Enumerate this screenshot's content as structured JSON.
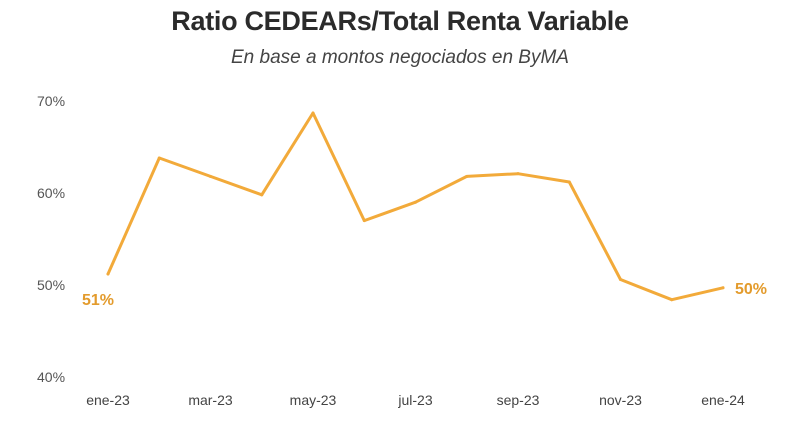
{
  "colors": {
    "line": "#F2AA3A",
    "data_label": "#E39B2C"
  },
  "chart_data": {
    "type": "line",
    "title": "Ratio CEDEARs/Total Renta Variable",
    "subtitle": "En base a montos negociados en ByMA",
    "xlabel": "",
    "ylabel": "",
    "ylim": [
      40,
      70
    ],
    "yticks": [
      40,
      50,
      60,
      70
    ],
    "ytick_labels": [
      "40%",
      "50%",
      "60%",
      "70%"
    ],
    "grid": false,
    "legend": "none",
    "categories": [
      "ene-23",
      "feb-23",
      "mar-23",
      "abr-23",
      "may-23",
      "jun-23",
      "jul-23",
      "ago-23",
      "sep-23",
      "oct-23",
      "nov-23",
      "dic-23",
      "ene-24"
    ],
    "x_tick_labels": [
      "ene-23",
      "mar-23",
      "may-23",
      "jul-23",
      "sep-23",
      "nov-23",
      "ene-24"
    ],
    "x_tick_indices": [
      0,
      2,
      4,
      6,
      8,
      10,
      12
    ],
    "series": [
      {
        "name": "Ratio CEDEARs/Total Renta Variable",
        "values": [
          51.2,
          63.8,
          61.8,
          59.8,
          68.7,
          57.0,
          59.0,
          61.8,
          62.1,
          61.2,
          50.6,
          48.4,
          49.7
        ]
      }
    ],
    "annotations": [
      {
        "index": 0,
        "text": "51%"
      },
      {
        "index": 12,
        "text": "50%"
      }
    ]
  }
}
